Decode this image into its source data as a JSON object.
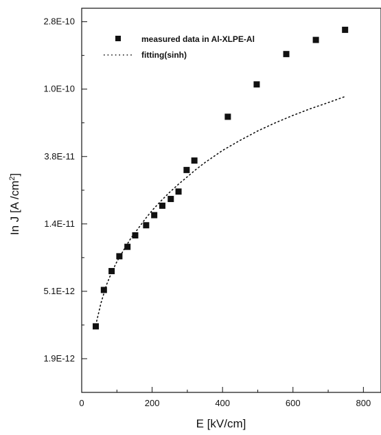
{
  "chart_data": {
    "type": "scatter",
    "xlabel": "E [kV/cm]",
    "ylabel_prefix": "In J [A /cm",
    "ylabel_sup": "2",
    "ylabel_suffix": "]",
    "y_scale": "log",
    "xlim": [
      0,
      850
    ],
    "ylim_ln": [
      -27.5,
      -21.8
    ],
    "x_ticks": [
      0,
      200,
      400,
      600,
      800
    ],
    "x_tick_labels": [
      "0",
      "200",
      "400",
      "600",
      "800"
    ],
    "y_ticks_ln": [
      -27.0,
      -26.0,
      -25.0,
      -24.0,
      -23.0,
      -22.0
    ],
    "y_tick_labels": [
      "1.9E-12",
      "5.1E-12",
      "1.4E-11",
      "3.8E-11",
      "1.0E-10",
      "2.8E-10"
    ],
    "legend_position": "top-left",
    "series": [
      {
        "name": "measured data in Al-XLPE-Al",
        "marker": "square",
        "color": "#111111",
        "x": [
          40,
          63,
          85,
          107,
          130,
          152,
          183,
          206,
          229,
          253,
          275,
          298,
          320,
          415,
          497,
          581,
          665,
          748
        ],
        "y_ln": [
          -26.52,
          -25.98,
          -25.7,
          -25.48,
          -25.34,
          -25.17,
          -25.02,
          -24.87,
          -24.73,
          -24.63,
          -24.52,
          -24.2,
          -24.06,
          -23.41,
          -22.93,
          -22.48,
          -22.27,
          -22.12
        ]
      },
      {
        "name": "fitting(sinh)",
        "style": "dotted",
        "color": "#111111",
        "x": [
          40,
          55,
          70,
          85,
          100,
          120,
          140,
          160,
          180,
          200,
          225,
          250,
          275,
          300,
          325,
          350,
          400,
          450,
          500,
          550,
          600,
          650,
          700,
          748
        ],
        "y_ln": [
          -26.5,
          -26.17,
          -25.91,
          -25.72,
          -25.56,
          -25.38,
          -25.21,
          -25.07,
          -24.93,
          -24.8,
          -24.66,
          -24.53,
          -24.41,
          -24.3,
          -24.19,
          -24.09,
          -23.91,
          -23.76,
          -23.62,
          -23.5,
          -23.39,
          -23.29,
          -23.2,
          -23.11
        ]
      }
    ]
  }
}
